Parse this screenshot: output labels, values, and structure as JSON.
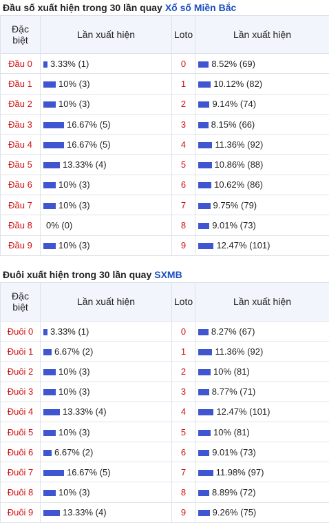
{
  "sections": [
    {
      "title": "Đầu số xuất hiện trong 30 lần quay",
      "title_link": "Xổ số Miền Bắc",
      "headers": [
        "Đặc biệt",
        "Lần xuất hiện",
        "Loto",
        "Lần xuất hiện"
      ],
      "rows": [
        {
          "label": "Đầu 0",
          "pct": 3.33,
          "text": "3.33% (1)",
          "loto": "0",
          "loto_pct": 8.52,
          "loto_text": "8.52% (69)"
        },
        {
          "label": "Đầu 1",
          "pct": 10,
          "text": "10% (3)",
          "loto": "1",
          "loto_pct": 10.12,
          "loto_text": "10.12% (82)"
        },
        {
          "label": "Đầu 2",
          "pct": 10,
          "text": "10% (3)",
          "loto": "2",
          "loto_pct": 9.14,
          "loto_text": "9.14% (74)"
        },
        {
          "label": "Đầu 3",
          "pct": 16.67,
          "text": "16.67% (5)",
          "loto": "3",
          "loto_pct": 8.15,
          "loto_text": "8.15% (66)"
        },
        {
          "label": "Đầu 4",
          "pct": 16.67,
          "text": "16.67% (5)",
          "loto": "4",
          "loto_pct": 11.36,
          "loto_text": "11.36% (92)"
        },
        {
          "label": "Đầu 5",
          "pct": 13.33,
          "text": "13.33% (4)",
          "loto": "5",
          "loto_pct": 10.86,
          "loto_text": "10.86% (88)"
        },
        {
          "label": "Đầu 6",
          "pct": 10,
          "text": "10% (3)",
          "loto": "6",
          "loto_pct": 10.62,
          "loto_text": "10.62% (86)"
        },
        {
          "label": "Đầu 7",
          "pct": 10,
          "text": "10% (3)",
          "loto": "7",
          "loto_pct": 9.75,
          "loto_text": "9.75% (79)"
        },
        {
          "label": "Đầu 8",
          "pct": 0,
          "text": "0% (0)",
          "loto": "8",
          "loto_pct": 9.01,
          "loto_text": "9.01% (73)"
        },
        {
          "label": "Đầu 9",
          "pct": 10,
          "text": "10% (3)",
          "loto": "9",
          "loto_pct": 12.47,
          "loto_text": "12.47% (101)"
        }
      ]
    },
    {
      "title": "Đuôi xuất hiện trong 30 lần quay",
      "title_link": "SXMB",
      "headers": [
        "Đặc biệt",
        "Lần xuất hiện",
        "Loto",
        "Lần xuất hiện"
      ],
      "rows": [
        {
          "label": "Đuôi 0",
          "pct": 3.33,
          "text": "3.33% (1)",
          "loto": "0",
          "loto_pct": 8.27,
          "loto_text": "8.27% (67)"
        },
        {
          "label": "Đuôi 1",
          "pct": 6.67,
          "text": "6.67% (2)",
          "loto": "1",
          "loto_pct": 11.36,
          "loto_text": "11.36% (92)"
        },
        {
          "label": "Đuôi 2",
          "pct": 10,
          "text": "10% (3)",
          "loto": "2",
          "loto_pct": 10,
          "loto_text": "10% (81)"
        },
        {
          "label": "Đuôi 3",
          "pct": 10,
          "text": "10% (3)",
          "loto": "3",
          "loto_pct": 8.77,
          "loto_text": "8.77% (71)"
        },
        {
          "label": "Đuôi 4",
          "pct": 13.33,
          "text": "13.33% (4)",
          "loto": "4",
          "loto_pct": 12.47,
          "loto_text": "12.47% (101)"
        },
        {
          "label": "Đuôi 5",
          "pct": 10,
          "text": "10% (3)",
          "loto": "5",
          "loto_pct": 10,
          "loto_text": "10% (81)"
        },
        {
          "label": "Đuôi 6",
          "pct": 6.67,
          "text": "6.67% (2)",
          "loto": "6",
          "loto_pct": 9.01,
          "loto_text": "9.01% (73)"
        },
        {
          "label": "Đuôi 7",
          "pct": 16.67,
          "text": "16.67% (5)",
          "loto": "7",
          "loto_pct": 11.98,
          "loto_text": "11.98% (97)"
        },
        {
          "label": "Đuôi 8",
          "pct": 10,
          "text": "10% (3)",
          "loto": "8",
          "loto_pct": 8.89,
          "loto_text": "8.89% (72)"
        },
        {
          "label": "Đuôi 9",
          "pct": 13.33,
          "text": "13.33% (4)",
          "loto": "9",
          "loto_pct": 9.26,
          "loto_text": "9.26% (75)"
        }
      ]
    }
  ]
}
